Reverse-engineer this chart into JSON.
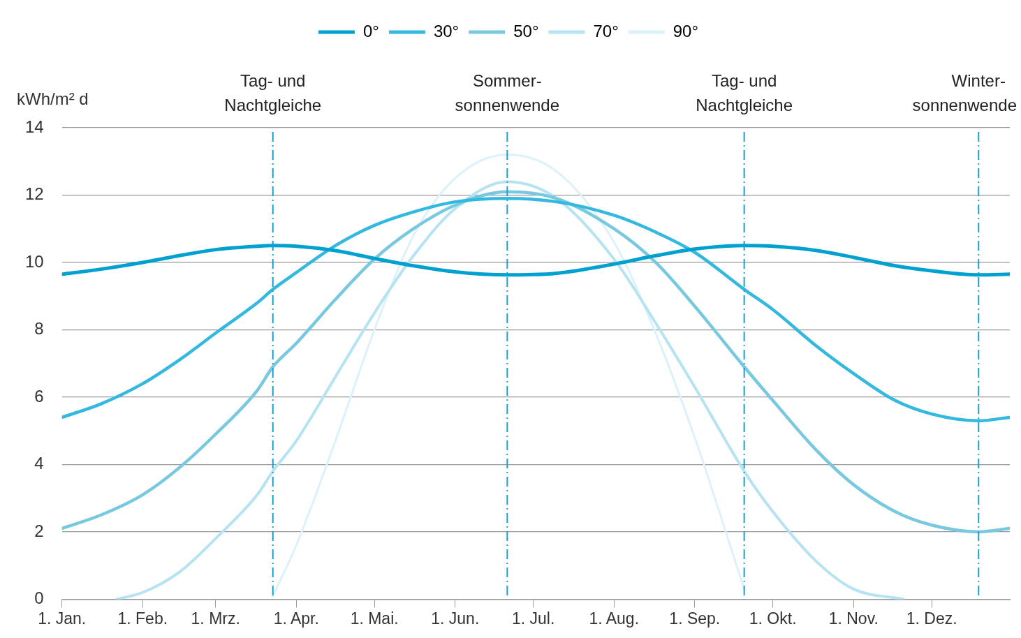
{
  "chart_data": {
    "type": "line",
    "ylabel": "kWh/m² d",
    "xlim": [
      "--01-01",
      "--12-31"
    ],
    "xticks": [
      {
        "value": "--01-01",
        "label": "1. Jan."
      },
      {
        "value": "--02-01",
        "label": "1. Feb."
      },
      {
        "value": "--03-01",
        "label": "1. Mrz."
      },
      {
        "value": "--04-01",
        "label": "1. Apr."
      },
      {
        "value": "--05-01",
        "label": "1. Mai."
      },
      {
        "value": "--06-01",
        "label": "1. Jun."
      },
      {
        "value": "--07-01",
        "label": "1. Jul."
      },
      {
        "value": "--08-01",
        "label": "1. Aug."
      },
      {
        "value": "--09-01",
        "label": "1. Sep."
      },
      {
        "value": "--10-01",
        "label": "1. Okt."
      },
      {
        "value": "--11-01",
        "label": "1. Nov."
      },
      {
        "value": "--12-01",
        "label": "1. Dez."
      }
    ],
    "ylim": [
      0,
      14
    ],
    "yticks": [
      0,
      2,
      4,
      6,
      8,
      10,
      12,
      14
    ],
    "grid": "y",
    "legend": "top",
    "marker": "none",
    "x": [
      "--01-01",
      "--01-16",
      "--02-01",
      "--02-15",
      "--03-01",
      "--03-17",
      "--03-23",
      "--04-01",
      "--04-16",
      "--05-01",
      "--05-16",
      "--06-01",
      "--06-21",
      "--07-10",
      "--08-01",
      "--08-17",
      "--09-01",
      "--09-20",
      "--10-01",
      "--10-18",
      "--11-01",
      "--11-17",
      "--12-01",
      "--12-19",
      "--12-31"
    ],
    "series": [
      {
        "name": "0°",
        "color": "#00a0d0",
        "values": [
          9.65,
          9.8,
          10.0,
          10.2,
          10.38,
          10.48,
          10.5,
          10.48,
          10.35,
          10.12,
          9.9,
          9.72,
          9.63,
          9.68,
          9.95,
          10.2,
          10.4,
          10.5,
          10.48,
          10.35,
          10.15,
          9.9,
          9.75,
          9.63,
          9.65
        ]
      },
      {
        "name": "30°",
        "color": "#33b8e0",
        "values": [
          5.4,
          5.8,
          6.4,
          7.1,
          7.9,
          8.8,
          9.2,
          9.7,
          10.5,
          11.1,
          11.5,
          11.8,
          11.9,
          11.8,
          11.4,
          10.9,
          10.3,
          9.2,
          8.6,
          7.5,
          6.7,
          5.9,
          5.5,
          5.3,
          5.4
        ]
      },
      {
        "name": "50°",
        "color": "#78c9e0",
        "values": [
          2.1,
          2.5,
          3.1,
          3.9,
          4.9,
          6.2,
          6.9,
          7.6,
          8.9,
          10.1,
          11.0,
          11.7,
          12.1,
          11.9,
          11.0,
          10.0,
          8.7,
          6.9,
          5.9,
          4.4,
          3.4,
          2.6,
          2.2,
          2.0,
          2.1
        ]
      },
      {
        "name": "70°",
        "color": "#b6e3f2",
        "x": [
          "--01-22",
          "--02-01",
          "--02-15",
          "--03-01",
          "--03-17",
          "--03-23",
          "--04-01",
          "--04-16",
          "--05-01",
          "--05-16",
          "--06-01",
          "--06-21",
          "--07-10",
          "--08-01",
          "--08-17",
          "--09-01",
          "--09-20",
          "--10-01",
          "--10-18",
          "--11-01",
          "--11-20"
        ],
        "values": [
          0,
          0.2,
          0.8,
          1.8,
          3.1,
          3.8,
          4.7,
          6.6,
          8.5,
          10.2,
          11.6,
          12.4,
          11.9,
          10.1,
          8.2,
          6.3,
          3.8,
          2.6,
          1.1,
          0.3,
          0
        ]
      },
      {
        "name": "90°",
        "color": "#dcf2fa",
        "x": [
          "--03-23",
          "--04-01",
          "--04-16",
          "--05-01",
          "--05-16",
          "--06-01",
          "--06-21",
          "--07-10",
          "--08-01",
          "--08-17",
          "--09-01",
          "--09-20"
        ],
        "values": [
          0.1,
          1.6,
          4.7,
          8.0,
          10.8,
          12.5,
          13.2,
          12.7,
          10.6,
          7.9,
          4.8,
          0.3
        ]
      }
    ],
    "ref_lines": [
      {
        "axis": "x",
        "value": "--03-23",
        "label": "Tag- und\nNachtgleiche",
        "color": "#1a9fd0"
      },
      {
        "axis": "x",
        "value": "--06-21",
        "label": "Sommer-\nsonnenwende",
        "color": "#1a9fd0"
      },
      {
        "axis": "x",
        "value": "--09-20",
        "label": "Tag- und\nNachtgleiche",
        "color": "#1a9fd0"
      },
      {
        "axis": "x",
        "value": "--12-19",
        "label": "Winter-\nsonnenwende",
        "color": "#1a9fd0"
      }
    ]
  }
}
